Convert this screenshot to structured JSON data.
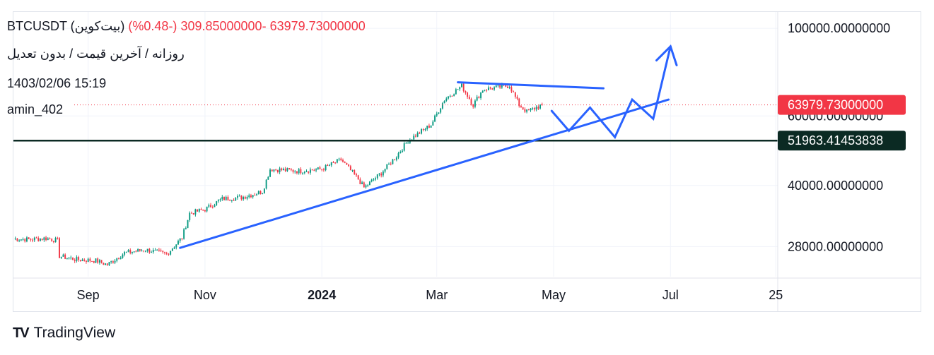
{
  "header": {
    "symbol": "BTCUSDT (بیت‌کوین)",
    "price": "63979.73000000",
    "change": "-309.85000000 (-0.48%)",
    "subtitle": "روزانه / آخرین قیمت / بدون تعدیل",
    "datetime": "1403/02/06 15:19",
    "author": "amin_402"
  },
  "colors": {
    "up": "#089981",
    "down": "#f23645",
    "drawing": "#2962ff",
    "support": "#0b2a23",
    "grid": "#f0f3fa",
    "axis_text": "#131722"
  },
  "chart_data": {
    "type": "candlestick",
    "title": "BTCUSDT (بیت‌کوین)",
    "interval": "daily",
    "x_range": [
      "2023-07-24",
      "2024-08-26"
    ],
    "y_scale": "log",
    "y_range": [
      23500,
      110000
    ],
    "x_ticks": [
      {
        "label": "Sep",
        "date": "2023-09-01",
        "bold": false
      },
      {
        "label": "Nov",
        "date": "2023-11-01",
        "bold": false
      },
      {
        "label": "2024",
        "date": "2024-01-01",
        "bold": true
      },
      {
        "label": "Mar",
        "date": "2024-03-01",
        "bold": false
      },
      {
        "label": "May",
        "date": "2024-05-01",
        "bold": false
      },
      {
        "label": "Jul",
        "date": "2024-07-01",
        "bold": false
      },
      {
        "label": "25",
        "date": "2024-08-25",
        "bold": false
      }
    ],
    "y_ticks": [
      {
        "label": "100000.00000000",
        "value": 100000
      },
      {
        "label": "60000.00000000",
        "value": 60000
      },
      {
        "label": "40000.00000000",
        "value": 40000
      },
      {
        "label": "28000.00000000",
        "value": 28000
      }
    ],
    "last_price": {
      "label": "63979.73000000",
      "value": 63979.73
    },
    "price_anchors": [
      [
        "2023-07-24",
        29300
      ],
      [
        "2023-08-01",
        29200
      ],
      [
        "2023-08-10",
        29400
      ],
      [
        "2023-08-16",
        29000
      ],
      [
        "2023-08-17",
        26500
      ],
      [
        "2023-08-25",
        26000
      ],
      [
        "2023-09-05",
        25800
      ],
      [
        "2023-09-11",
        25200
      ],
      [
        "2023-09-20",
        27000
      ],
      [
        "2023-10-01",
        27500
      ],
      [
        "2023-10-12",
        26800
      ],
      [
        "2023-10-20",
        29500
      ],
      [
        "2023-10-24",
        34000
      ],
      [
        "2023-11-01",
        34800
      ],
      [
        "2023-11-10",
        37000
      ],
      [
        "2023-11-20",
        37300
      ],
      [
        "2023-12-01",
        38600
      ],
      [
        "2023-12-05",
        44000
      ],
      [
        "2023-12-20",
        43500
      ],
      [
        "2024-01-01",
        44000
      ],
      [
        "2024-01-11",
        46500
      ],
      [
        "2024-01-20",
        41500
      ],
      [
        "2024-01-23",
        39500
      ],
      [
        "2024-02-01",
        43000
      ],
      [
        "2024-02-09",
        47500
      ],
      [
        "2024-02-15",
        52000
      ],
      [
        "2024-02-27",
        57000
      ],
      [
        "2024-03-05",
        66000
      ],
      [
        "2024-03-14",
        71500
      ],
      [
        "2024-03-20",
        64000
      ],
      [
        "2024-03-25",
        70000
      ],
      [
        "2024-04-08",
        71600
      ],
      [
        "2024-04-13",
        64000
      ],
      [
        "2024-04-17",
        61500
      ],
      [
        "2024-04-25",
        63980
      ]
    ],
    "support_line": {
      "label": "51963.41453838",
      "value": 51963.41453838
    },
    "drawings": {
      "trendline": [
        [
          "2023-10-19",
          27800
        ],
        [
          "2024-06-30",
          66000
        ]
      ],
      "resistance": [
        [
          "2024-03-12",
          73000
        ],
        [
          "2024-05-27",
          70500
        ]
      ],
      "projection_path": [
        [
          "2024-04-30",
          61800
        ],
        [
          "2024-05-09",
          55000
        ],
        [
          "2024-05-20",
          63000
        ],
        [
          "2024-06-02",
          53000
        ],
        [
          "2024-06-11",
          66000
        ],
        [
          "2024-06-22",
          59000
        ],
        [
          "2024-07-01",
          90000
        ]
      ]
    }
  },
  "branding": {
    "logo_mark": "TV",
    "name": "TradingView"
  }
}
